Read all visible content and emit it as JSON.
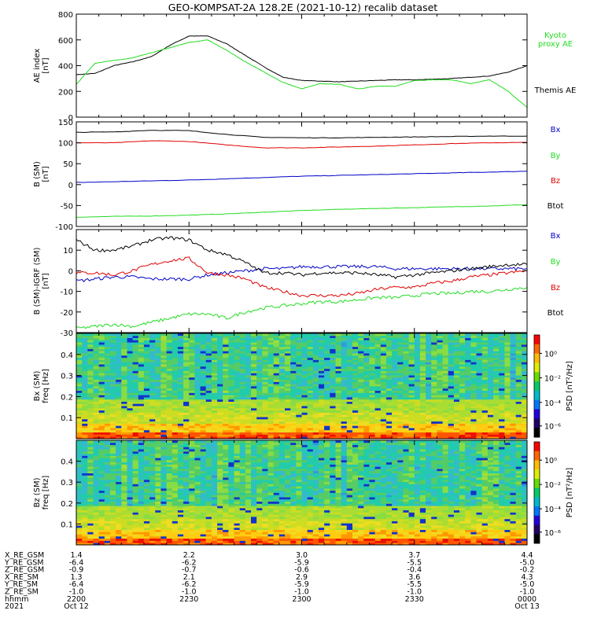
{
  "title": "GEO-KOMPSAT-2A 128.2E (2021-10-12) recalib dataset",
  "colors": {
    "black": "#000000",
    "blue": "#0000c8",
    "green": "#22dd22",
    "red": "#e00000"
  },
  "chart_data": [
    {
      "type": "line",
      "ylabel": "AE index\n[nT]",
      "ylim": [
        0,
        800
      ],
      "yticks": [
        "0",
        "200",
        "400",
        "600",
        "800"
      ],
      "legend": [
        {
          "name": "Kyoto\nproxy AE",
          "color": "green"
        },
        {
          "name": "Themis AE",
          "color": "black"
        }
      ],
      "x": [
        0,
        5,
        10,
        15,
        20,
        25,
        30,
        35,
        40,
        45,
        50,
        55,
        60,
        65,
        70,
        75,
        80,
        85,
        90,
        95,
        100,
        105,
        110,
        115,
        120
      ],
      "series": [
        {
          "name": "Themis AE",
          "color": "black",
          "values": [
            330,
            340,
            400,
            430,
            470,
            560,
            630,
            630,
            570,
            480,
            390,
            310,
            285,
            280,
            275,
            280,
            285,
            290,
            290,
            295,
            300,
            310,
            320,
            350,
            400
          ]
        },
        {
          "name": "Kyoto proxy AE",
          "color": "green",
          "values": [
            255,
            420,
            440,
            460,
            500,
            540,
            580,
            600,
            520,
            430,
            350,
            270,
            220,
            260,
            255,
            220,
            240,
            240,
            285,
            290,
            290,
            260,
            290,
            200,
            75
          ]
        }
      ]
    },
    {
      "type": "line",
      "ylabel": "B (SM)\n[nT]",
      "ylim": [
        -100,
        150
      ],
      "yticks": [
        "-100",
        "-50",
        "0",
        "50",
        "100",
        "150"
      ],
      "legend": [
        {
          "name": "Bx",
          "color": "blue"
        },
        {
          "name": "By",
          "color": "green"
        },
        {
          "name": "Bz",
          "color": "red"
        },
        {
          "name": "Btot",
          "color": "black"
        }
      ],
      "x": [
        0,
        10,
        20,
        30,
        40,
        50,
        60,
        70,
        80,
        90,
        100,
        110,
        120
      ],
      "series": [
        {
          "name": "Bx",
          "color": "blue",
          "values": [
            5,
            7,
            9,
            11,
            14,
            17,
            20,
            22,
            24,
            26,
            28,
            30,
            32
          ]
        },
        {
          "name": "By",
          "color": "green",
          "values": [
            -78,
            -76,
            -75,
            -73,
            -70,
            -66,
            -62,
            -59,
            -57,
            -55,
            -53,
            -51,
            -48
          ]
        },
        {
          "name": "Bz",
          "color": "red",
          "values": [
            100,
            100,
            105,
            103,
            95,
            88,
            88,
            90,
            92,
            95,
            98,
            100,
            101
          ]
        },
        {
          "name": "Btot",
          "color": "black",
          "values": [
            125,
            126,
            130,
            129,
            120,
            113,
            112,
            112,
            113,
            114,
            115,
            116,
            116
          ]
        }
      ]
    },
    {
      "type": "line",
      "ylabel": "B (SM)-IGRF (SM)\n[nT]",
      "ylim": [
        -30,
        20
      ],
      "yticks": [
        "-30",
        "-20",
        "-10",
        "0",
        "10"
      ],
      "legend": [
        {
          "name": "Bx",
          "color": "blue"
        },
        {
          "name": "By",
          "color": "green"
        },
        {
          "name": "Bz",
          "color": "red"
        },
        {
          "name": "Btot",
          "color": "black"
        }
      ],
      "x": [
        0,
        5,
        10,
        15,
        20,
        25,
        30,
        35,
        40,
        45,
        50,
        55,
        60,
        65,
        70,
        75,
        80,
        85,
        90,
        95,
        100,
        105,
        110,
        115,
        120
      ],
      "series": [
        {
          "name": "Bx",
          "color": "blue",
          "values": [
            -5,
            -4,
            -3,
            -3,
            -4,
            -4,
            -4,
            -2,
            -1,
            0,
            1,
            1,
            2,
            2,
            2,
            2,
            2,
            1,
            1,
            1,
            1,
            1,
            1,
            1,
            1
          ]
        },
        {
          "name": "By",
          "color": "green",
          "values": [
            -28,
            -27,
            -26,
            -27,
            -25,
            -23,
            -21,
            -21,
            -23,
            -20,
            -18,
            -17,
            -16,
            -15,
            -15,
            -14,
            -13,
            -13,
            -12,
            -11,
            -11,
            -10,
            -10,
            -9,
            -8
          ]
        },
        {
          "name": "Bz",
          "color": "red",
          "values": [
            -1,
            -1,
            -2,
            0,
            3,
            5,
            6,
            -1,
            -2,
            -4,
            -8,
            -10,
            -12,
            -12,
            -12,
            -11,
            -9,
            -8,
            -8,
            -6,
            -5,
            -3,
            -2,
            -1,
            0
          ]
        },
        {
          "name": "Btot",
          "color": "black",
          "values": [
            15,
            10,
            10,
            12,
            15,
            16,
            15,
            10,
            8,
            4,
            -1,
            -1,
            -2,
            -1,
            -1,
            -1,
            -2,
            -3,
            -2,
            -1,
            0,
            1,
            2,
            3,
            3
          ]
        }
      ]
    },
    {
      "type": "heatmap",
      "ylabel": "Bx (SM)\nfreq [Hz]",
      "ylim": [
        0,
        0.5
      ],
      "yticks": [
        "0.1",
        "0.2",
        "0.3",
        "0.4"
      ],
      "colorbar_label": "PSD [nT²/Hz]",
      "colorbar_ticks": [
        "10⁰",
        "10⁻²",
        "10⁻⁴",
        "10⁻⁶"
      ]
    },
    {
      "type": "heatmap",
      "ylabel": "Bz (SM)\nfreq [Hz]",
      "ylim": [
        0,
        0.5
      ],
      "yticks": [
        "0.1",
        "0.2",
        "0.3",
        "0.4"
      ],
      "colorbar_label": "PSD [nT²/Hz]",
      "colorbar_ticks": [
        "10⁰",
        "10⁻²",
        "10⁻⁴",
        "10⁻⁶"
      ]
    }
  ],
  "ephemeris": {
    "labels": [
      "X_RE_GSM",
      "Y_RE_GSM",
      "Z_RE_GSM",
      "X_RE_SM",
      "Y_RE_SM",
      "Z_RE_SM",
      "hhmm",
      "2021"
    ],
    "columns": [
      [
        "1.4",
        "-6.4",
        "-0.9",
        "1.3",
        "-6.4",
        "-1.0",
        "2200",
        "Oct 12"
      ],
      [
        "2.2",
        "-6.2",
        "-0.7",
        "2.1",
        "-6.2",
        "-1.0",
        "2230",
        ""
      ],
      [
        "3.0",
        "-5.9",
        "-0.6",
        "2.9",
        "-5.9",
        "-1.0",
        "2300",
        ""
      ],
      [
        "3.7",
        "-5.5",
        "-0.4",
        "3.6",
        "-5.5",
        "-1.0",
        "2330",
        ""
      ],
      [
        "4.4",
        "-5.0",
        "-0.2",
        "4.3",
        "-5.0",
        "-1.0",
        "0000",
        "Oct 13"
      ]
    ]
  }
}
